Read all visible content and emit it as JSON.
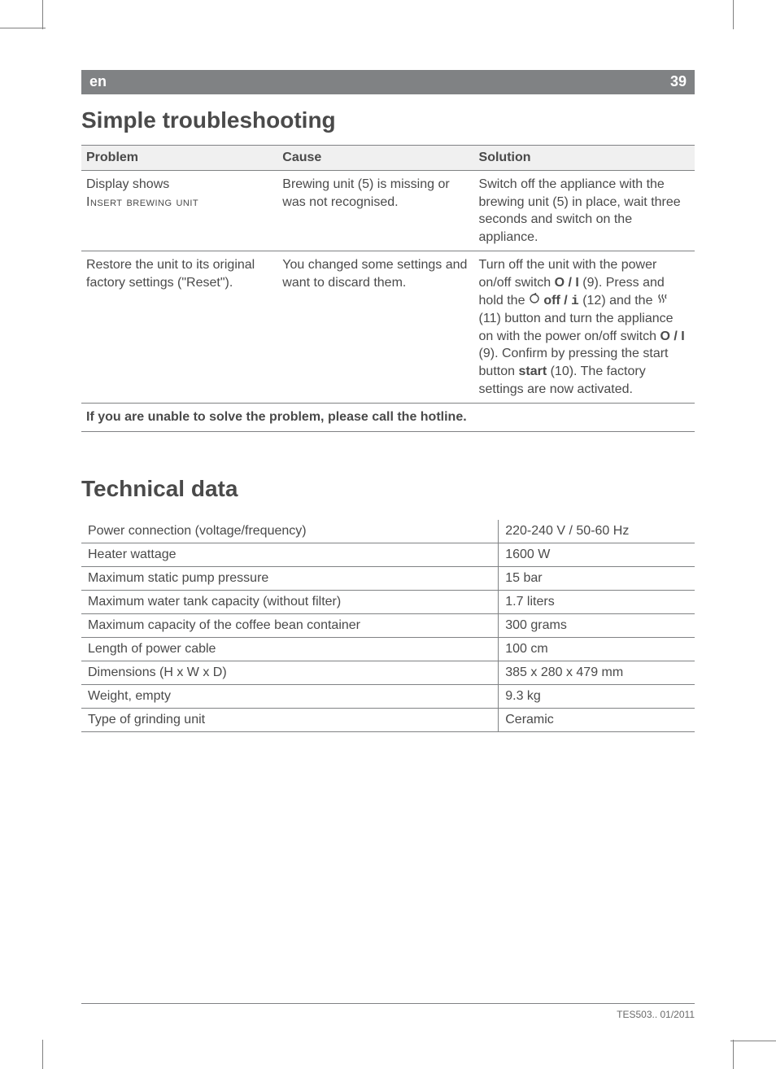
{
  "header": {
    "lang": "en",
    "page_no": "39"
  },
  "section1_title": "Simple troubleshooting",
  "troubleshooting": {
    "columns": [
      "Problem",
      "Cause",
      "Solution"
    ],
    "col_widths_pct": [
      32,
      32,
      36
    ],
    "rows": [
      {
        "problem_line1": "Display shows",
        "problem_line2": "Insert brewing unit",
        "cause": "Brewing unit (5) is missing or was not recognised.",
        "solution": "Switch off the appliance with the brewing unit (5) in place, wait three seconds and switch on the appliance."
      },
      {
        "problem": "Restore the unit to its original factory settings (\"Reset\").",
        "cause": "You changed some settings and want to discard them.",
        "solution_pre": "Turn off the unit with the power on/off switch ",
        "switch1": "O / I",
        "solution_mid1": " (9). Press and hold the ",
        "off_slash": " off / ",
        "info_i": "i",
        "solution_mid2": " (12) and the ",
        "solution_mid3": " (11) button and turn the appliance on with the power on/off switch ",
        "switch2": "O / I",
        "solution_mid4": " (9). Confirm by pressing the start button ",
        "start_bold": "start",
        "solution_end": " (10). The factory settings are now activated."
      }
    ],
    "footer": "If you are unable to solve the problem, please call the hotline."
  },
  "section2_title": "Technical data",
  "techdata": {
    "rows": [
      {
        "label": "Power connection (voltage/frequency)",
        "value": "220-240 V / 50-60 Hz"
      },
      {
        "label": "Heater wattage",
        "value": "1600 W"
      },
      {
        "label": "Maximum static pump pressure",
        "value": "15 bar"
      },
      {
        "label": "Maximum water tank capacity (without filter)",
        "value": "1.7 liters"
      },
      {
        "label": "Maximum capacity of the coffee bean container",
        "value": "300 grams"
      },
      {
        "label": "Length of power cable",
        "value": "100 cm"
      },
      {
        "label": "Dimensions (H x W x D)",
        "value": "385 x 280 x 479 mm"
      },
      {
        "label": "Weight, empty",
        "value": "9.3 kg"
      },
      {
        "label": "Type of grinding unit",
        "value": "Ceramic"
      }
    ]
  },
  "footer": {
    "text": "TES503..   01/2011"
  },
  "colors": {
    "text": "#4a4a4a",
    "rule": "#808284",
    "header_bg": "#808284",
    "header_fg": "#ffffff",
    "thead_bg": "#f0f0f0"
  }
}
